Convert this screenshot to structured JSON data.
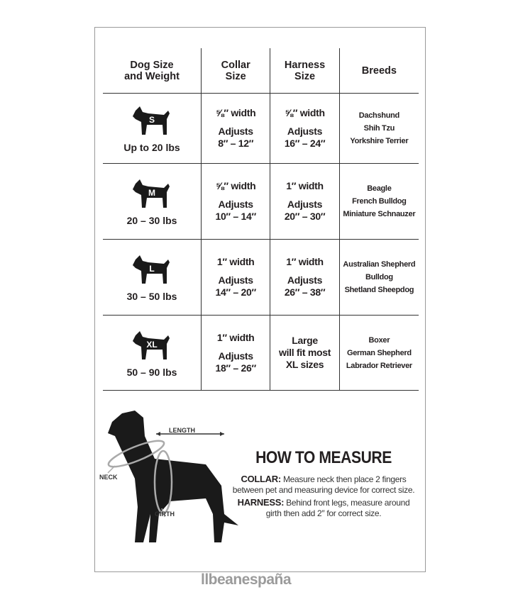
{
  "table": {
    "headers": [
      "Dog Size\nand Weight",
      "Collar\nSize",
      "Harness\nSize",
      "Breeds"
    ],
    "rows": [
      {
        "size_letter": "S",
        "weight": "Up to 20 lbs",
        "collar_width": "⅝″ width",
        "collar_adjust": "Adjusts\n8″ – 12″",
        "harness_width": "⅝″ width",
        "harness_adjust": "Adjusts\n16″ – 24″",
        "breeds": [
          "Dachshund",
          "Shih Tzu",
          "Yorkshire Terrier"
        ]
      },
      {
        "size_letter": "M",
        "weight": "20 – 30 lbs",
        "collar_width": "⅝″ width",
        "collar_adjust": "Adjusts\n10″ – 14″",
        "harness_width": "1″ width",
        "harness_adjust": "Adjusts\n20″ – 30″",
        "breeds": [
          "Beagle",
          "French Bulldog",
          "Miniature Schnauzer"
        ]
      },
      {
        "size_letter": "L",
        "weight": "30 – 50 lbs",
        "collar_width": "1″ width",
        "collar_adjust": "Adjusts\n14″ – 20″",
        "harness_width": "1″ width",
        "harness_adjust": "Adjusts\n26″ – 38″",
        "breeds": [
          "Australian Shepherd",
          "Bulldog",
          "Shetland Sheepdog"
        ]
      },
      {
        "size_letter": "XL",
        "weight": "50 – 90 lbs",
        "collar_width": "1″ width",
        "collar_adjust": "Adjusts\n18″ – 26″",
        "harness_width": "",
        "harness_adjust": "Large\nwill fit most\nXL sizes",
        "breeds": [
          "Boxer",
          "German Shepherd",
          "Labrador Retriever"
        ]
      }
    ]
  },
  "diagram": {
    "length": "LENGTH",
    "neck": "NECK",
    "girth": "GIRTH"
  },
  "how_to": {
    "title": "HOW TO MEASURE",
    "collar_label": "COLLAR:",
    "collar_text": "Measure neck then place 2 fingers between pet and measuring device for correct size.",
    "harness_label": "HARNESS:",
    "harness_text": "Behind front legs, measure around girth then add 2″ for correct size."
  },
  "watermark": "llbeanespaña"
}
